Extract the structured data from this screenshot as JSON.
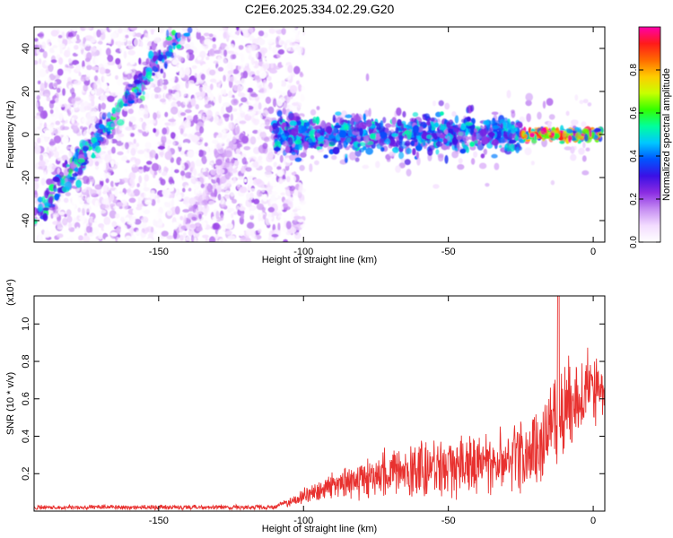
{
  "figure": {
    "title": "C2E6.2025.334.02.29.G20"
  },
  "colors": {
    "snr_line": "#e8312f",
    "colormap": [
      "#ffffff",
      "#f3dcff",
      "#c58cf2",
      "#8a2be2",
      "#3a10e5",
      "#0055ff",
      "#00c8ff",
      "#00ff9c",
      "#33ff00",
      "#c8ff00",
      "#ffcc00",
      "#ff6a00",
      "#ff1a1a",
      "#ff00aa"
    ]
  },
  "chart_data": [
    {
      "type": "heatmap",
      "xlabel": "Height of straight line (km)",
      "ylabel": "Frequency (Hz)",
      "xlim": [
        -193,
        4
      ],
      "ylim": [
        -50,
        50
      ],
      "xticks": [
        -150,
        -100,
        -50,
        0
      ],
      "xtick_labels": [
        "-150",
        "-100",
        "-50",
        "0"
      ],
      "yticks": [
        40,
        20,
        0,
        -20,
        -40
      ],
      "ytick_labels": [
        "40",
        "20",
        "0",
        "-20",
        "-40"
      ],
      "colorbar": {
        "label": "Normalized spectral amplitude",
        "range": [
          0,
          1
        ],
        "ticks": [
          0.0,
          0.2,
          0.4,
          0.6,
          0.8
        ],
        "tick_labels": [
          "0.0",
          "0.2",
          "0.4",
          "0.6",
          "0.8"
        ]
      },
      "features": [
        {
          "kind": "diagonal-trace",
          "x_start": -192,
          "y_start": -38,
          "x_end": -143,
          "y_end": 47,
          "amplitude": 0.45
        },
        {
          "kind": "diagonal-trace",
          "x_start": -140,
          "y_start": -42,
          "x_end": -121,
          "y_end": 0,
          "amplitude": 0.15
        },
        {
          "kind": "horizontal-band",
          "x_start": -110,
          "x_end": -25,
          "y_center": 0,
          "y_halfwidth": 7,
          "amplitude": 0.45
        },
        {
          "kind": "horizontal-band",
          "x_start": -25,
          "x_end": 3,
          "y_center": 0,
          "y_halfwidth": 2,
          "amplitude": 0.9
        }
      ],
      "noise_region": {
        "x_start": -193,
        "x_end": -100,
        "y_start": -50,
        "y_end": 50,
        "amplitude": 0.1
      }
    },
    {
      "type": "line",
      "xlabel": "Height of straight line (km)",
      "ylabel": "SNR (10 * v/v)",
      "multiplier_label": "(x10⁴)",
      "xlim": [
        -193,
        4
      ],
      "ylim": [
        0,
        1.15
      ],
      "xticks": [
        -150,
        -100,
        -50,
        0
      ],
      "xtick_labels": [
        "-150",
        "-100",
        "-50",
        "0"
      ],
      "yticks": [
        0.2,
        0.4,
        0.6,
        0.8,
        1.0
      ],
      "ytick_labels": [
        "0.2",
        "0.4",
        "0.6",
        "0.8",
        "1.0"
      ],
      "series": [
        {
          "x_start": -193,
          "x_end": 4,
          "envelope_x": [
            -193,
            -110,
            -100,
            -90,
            -80,
            -70,
            -60,
            -50,
            -40,
            -30,
            -20,
            -10,
            0,
            4
          ],
          "envelope_mean": [
            0.02,
            0.02,
            0.08,
            0.13,
            0.17,
            0.2,
            0.22,
            0.24,
            0.25,
            0.28,
            0.33,
            0.55,
            0.68,
            0.6
          ],
          "envelope_spread": [
            0.015,
            0.015,
            0.05,
            0.09,
            0.12,
            0.17,
            0.2,
            0.2,
            0.2,
            0.2,
            0.25,
            0.3,
            0.25,
            0.2
          ],
          "peak": {
            "x": -12,
            "y": 1.15
          }
        }
      ]
    }
  ]
}
